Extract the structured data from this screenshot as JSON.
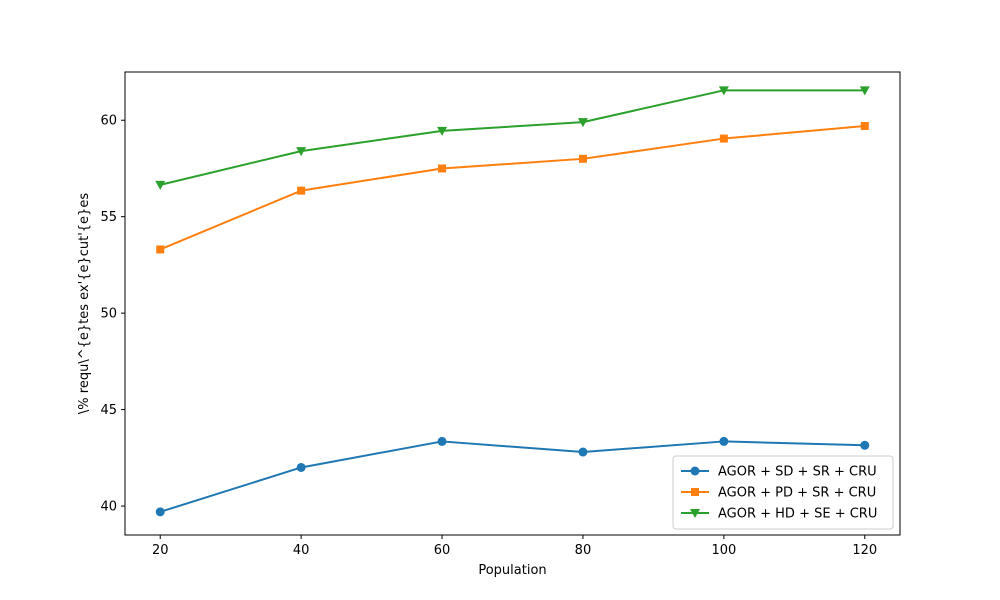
{
  "chart_data": {
    "type": "line",
    "title": "",
    "xlabel": "Population",
    "ylabel": "\\% requ\\^{e}tes ex'{e}cut'{e}es",
    "x": [
      20,
      40,
      60,
      80,
      100,
      120
    ],
    "xlim": [
      15,
      125
    ],
    "ylim": [
      38.5,
      62.5
    ],
    "xticks": [
      20,
      40,
      60,
      80,
      100,
      120
    ],
    "yticks": [
      40,
      45,
      50,
      55,
      60
    ],
    "grid": false,
    "legend_position": "lower-right",
    "series": [
      {
        "name": "AGOR + SD + SR + CRU",
        "color": "#1f77b4",
        "marker": "circle",
        "values": [
          39.7,
          42.0,
          43.35,
          42.8,
          43.35,
          43.15
        ]
      },
      {
        "name": "AGOR + PD + SR + CRU",
        "color": "#ff7f0e",
        "marker": "square",
        "values": [
          53.3,
          56.35,
          57.5,
          58.0,
          59.05,
          59.7
        ]
      },
      {
        "name": "AGOR + HD + SE + CRU",
        "color": "#2ca02c",
        "marker": "triangle-down",
        "values": [
          56.65,
          58.4,
          59.45,
          59.9,
          61.55,
          61.55
        ]
      }
    ]
  }
}
